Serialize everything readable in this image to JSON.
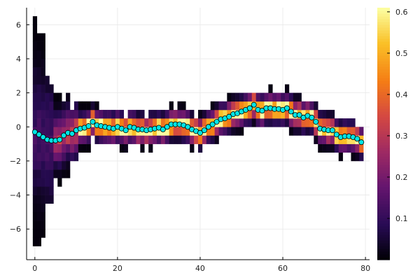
{
  "chart_data": {
    "type": "heatmap",
    "title": "",
    "xlabel": "",
    "ylabel": "",
    "xlim": [
      -2,
      81
    ],
    "ylim": [
      -7.8,
      7
    ],
    "x_ticks": [
      0,
      20,
      40,
      60,
      80
    ],
    "y_ticks": [
      -6,
      -4,
      -2,
      0,
      2,
      4,
      6
    ],
    "x_tick_labels": [
      "0",
      "20",
      "40",
      "60",
      "80"
    ],
    "y_tick_labels": [
      "−6",
      "−4",
      "−2",
      "0",
      "2",
      "4",
      "6"
    ],
    "grid": true,
    "legend": "none",
    "colorbar": {
      "colormap": "inferno",
      "range": [
        0,
        0.61
      ],
      "ticks": [
        0.1,
        0.2,
        0.3,
        0.4,
        0.5,
        0.6
      ],
      "tick_labels": [
        "0.1",
        "0.2",
        "0.3",
        "0.4",
        "0.5",
        "0.6"
      ]
    },
    "heatmap": {
      "x_bin_width": 1,
      "y_bin_width": 0.5,
      "description_free": true
    },
    "series": [
      {
        "type": "scatter-line",
        "color": "#00e5e5",
        "x": [
          0,
          1,
          2,
          3,
          4,
          5,
          6,
          7,
          8,
          9,
          10,
          11,
          12,
          13,
          14,
          15,
          16,
          17,
          18,
          19,
          20,
          21,
          22,
          23,
          24,
          25,
          26,
          27,
          28,
          29,
          30,
          31,
          32,
          33,
          34,
          35,
          36,
          37,
          38,
          39,
          40,
          41,
          42,
          43,
          44,
          45,
          46,
          47,
          48,
          49,
          50,
          51,
          52,
          53,
          54,
          55,
          56,
          57,
          58,
          59,
          60,
          61,
          62,
          63,
          64,
          65,
          66,
          67,
          68,
          69,
          70,
          71,
          72,
          73,
          74,
          75,
          76,
          77,
          78,
          79
        ],
        "y": [
          -0.3,
          -0.45,
          -0.6,
          -0.75,
          -0.8,
          -0.8,
          -0.75,
          -0.5,
          -0.35,
          -0.4,
          -0.2,
          -0.1,
          -0.05,
          0.05,
          0.3,
          0.1,
          0.05,
          0.0,
          -0.05,
          -0.1,
          0.0,
          -0.1,
          -0.2,
          0.0,
          -0.05,
          -0.15,
          -0.15,
          -0.2,
          -0.15,
          -0.1,
          -0.05,
          -0.15,
          0.0,
          0.15,
          0.15,
          0.15,
          0.1,
          0.0,
          -0.15,
          -0.25,
          -0.35,
          -0.2,
          0.0,
          0.15,
          0.3,
          0.45,
          0.5,
          0.6,
          0.75,
          0.8,
          0.9,
          1.0,
          1.1,
          1.3,
          1.0,
          0.95,
          1.1,
          1.1,
          1.05,
          1.05,
          1.0,
          1.1,
          0.9,
          0.7,
          0.7,
          0.55,
          0.65,
          0.55,
          0.3,
          -0.1,
          -0.15,
          -0.2,
          -0.2,
          -0.45,
          -0.6,
          -0.55,
          -0.55,
          -0.6,
          -0.7,
          -0.9
        ]
      }
    ]
  }
}
